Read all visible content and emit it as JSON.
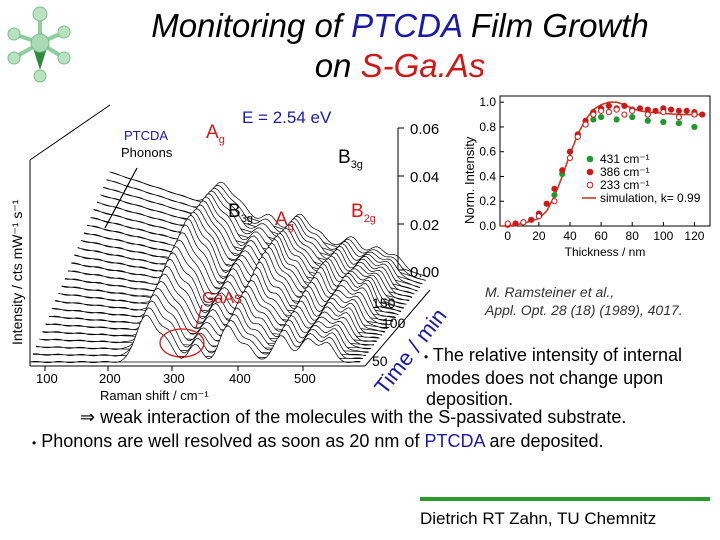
{
  "title": {
    "part1": "Monitoring of ",
    "highlight1": "PTCDA",
    "part2": " Film Growth",
    "line2a": "on ",
    "highlight2": "S-Ga.As"
  },
  "figure3d": {
    "energy_label": "E = 2.54 eV",
    "ptcda_label": "PTCDA",
    "phonons_label": "Phonons",
    "peak_Ag1": "A",
    "peak_Ag1_sub": "g",
    "peak_B3g_top": "B",
    "peak_B3g_top_sub": "3g",
    "peak_B3g": "B",
    "peak_B3g_sub": "3g",
    "peak_Ag2": "A",
    "peak_Ag2_sub": "g",
    "peak_B2g": "B",
    "peak_B2g_sub": "2g",
    "gaas_label": "GaAs",
    "y_axis_label": "Intensity / cts mW⁻¹ s⁻¹",
    "x_axis_label": "Raman shift / cm⁻¹",
    "time_axis_label": "Time / min",
    "x_ticks": [
      "100",
      "200",
      "300",
      "400",
      "500"
    ],
    "time_ticks": [
      "50",
      "100",
      "150"
    ],
    "z_ticks": [
      "0.06",
      "0.04",
      "0.02",
      "0.00"
    ]
  },
  "chart_data": {
    "type": "scatter",
    "xlabel": "Thickness / nm",
    "ylabel": "Norm. Intensity",
    "xlim": [
      -5,
      130
    ],
    "ylim": [
      0.0,
      1.05
    ],
    "x_ticks": [
      "0",
      "20",
      "40",
      "60",
      "80",
      "100",
      "120"
    ],
    "y_ticks": [
      "0.0",
      "0.2",
      "0.4",
      "0.6",
      "0.8",
      "1.0"
    ],
    "legend_position": "bottom-right",
    "series": [
      {
        "name": "431 cm⁻¹",
        "marker": "filled",
        "color": "#1f9a2a",
        "x": [
          30,
          35,
          40,
          45,
          50,
          55,
          60,
          70,
          80,
          90,
          100,
          110,
          120
        ],
        "y": [
          0.25,
          0.42,
          0.6,
          0.72,
          0.82,
          0.86,
          0.88,
          0.86,
          0.88,
          0.85,
          0.84,
          0.83,
          0.8
        ]
      },
      {
        "name": "386 cm⁻¹",
        "marker": "filled",
        "color": "#d01818",
        "x": [
          0,
          5,
          10,
          15,
          20,
          25,
          30,
          35,
          40,
          45,
          50,
          55,
          60,
          65,
          70,
          75,
          80,
          85,
          90,
          95,
          100,
          105,
          110,
          115,
          120,
          125
        ],
        "y": [
          0.01,
          0.02,
          0.03,
          0.05,
          0.1,
          0.18,
          0.3,
          0.45,
          0.6,
          0.74,
          0.85,
          0.92,
          0.95,
          0.97,
          0.95,
          0.97,
          0.94,
          0.95,
          0.94,
          0.93,
          0.95,
          0.94,
          0.93,
          0.93,
          0.92,
          0.9
        ]
      },
      {
        "name": "233 cm⁻¹",
        "marker": "open",
        "color": "#d01818",
        "x": [
          0,
          10,
          20,
          30,
          40,
          45,
          50,
          55,
          60,
          65,
          70,
          75,
          80,
          90,
          100,
          110,
          120
        ],
        "y": [
          0.02,
          0.03,
          0.08,
          0.2,
          0.55,
          0.72,
          0.82,
          0.9,
          0.93,
          0.92,
          0.94,
          0.9,
          0.93,
          0.9,
          0.92,
          0.88,
          0.9
        ]
      },
      {
        "name": "simulation, k= 0.99",
        "marker": "line",
        "color": "#c83a28",
        "x": [
          -5,
          0,
          10,
          20,
          25,
          30,
          35,
          40,
          45,
          50,
          55,
          60,
          65,
          70,
          75,
          80,
          85,
          90,
          100,
          110,
          120,
          125
        ],
        "y": [
          0.0,
          0.0,
          0.02,
          0.06,
          0.12,
          0.24,
          0.4,
          0.58,
          0.74,
          0.86,
          0.94,
          0.98,
          1.0,
          1.0,
          0.98,
          0.95,
          0.93,
          0.92,
          0.91,
          0.9,
          0.9,
          0.9
        ]
      }
    ]
  },
  "reference": {
    "line1": "M. Ramsteiner et al.,",
    "line2": "Appl. Opt. 28 (18) (1989), 4017."
  },
  "bullets": {
    "b1_line1": "The relative intensity of internal",
    "b1_line2": "modes does not change upon",
    "b1_line3": "deposition.",
    "implies_symbol": "⇒",
    "implies_text": " weak interaction of the molecules with the S-passivated substrate.",
    "b2_text_a": "Phonons are well resolved as soon as 20 nm of ",
    "b2_highlight": "PTCDA",
    "b2_text_b": " are deposited."
  },
  "footer": {
    "author": "Dietrich RT Zahn, TU Chemnitz"
  },
  "colors": {
    "accent_blue": "#1a1aa8",
    "accent_red": "#d01818",
    "divider_green": "#2e9a2e"
  }
}
